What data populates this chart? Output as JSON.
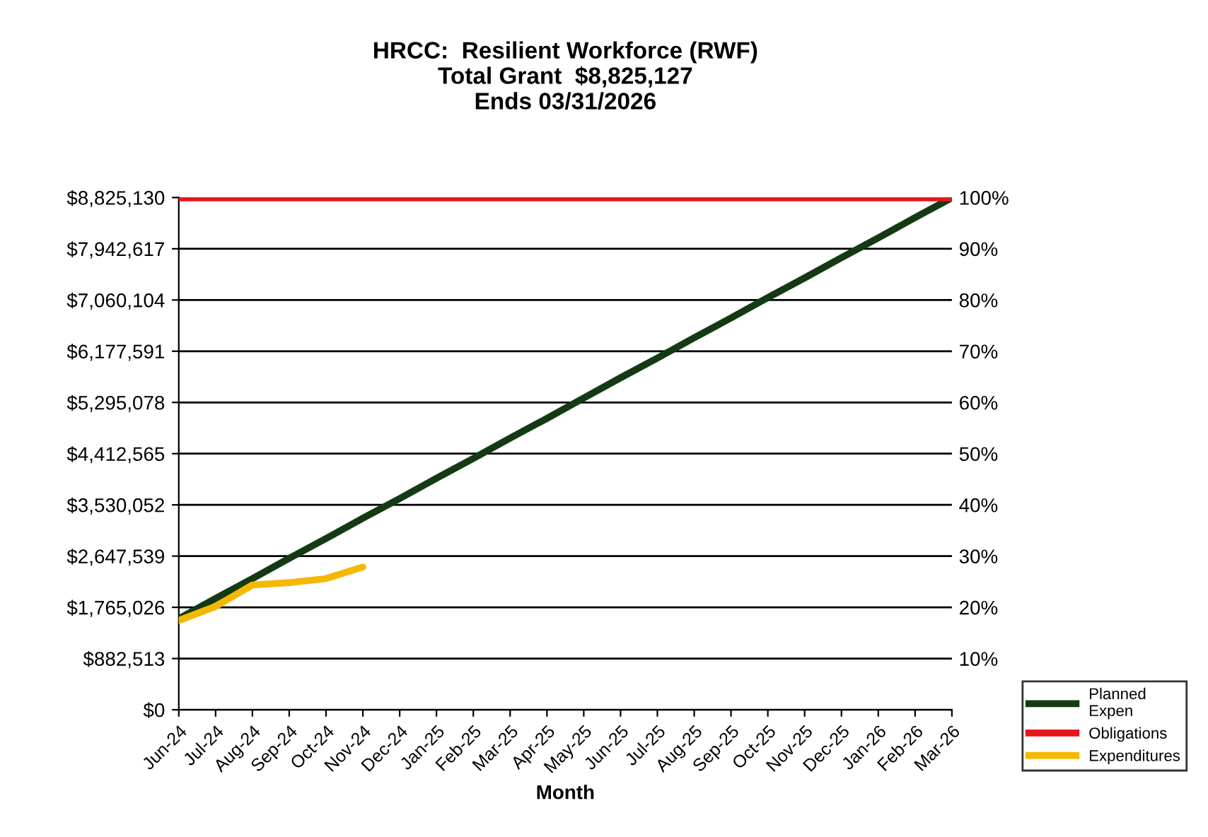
{
  "chart_data": {
    "type": "line",
    "title": "HRCC:  Resilient Workforce (RWF)\nTotal Grant  $8,825,127\nEnds 03/31/2026",
    "xlabel": "Month",
    "categories": [
      "Jun-24",
      "Jul-24",
      "Aug-24",
      "Sep-24",
      "Oct-24",
      "Nov-24",
      "Dec-24",
      "Jan-25",
      "Feb-25",
      "Mar-25",
      "Apr-25",
      "May-25",
      "Jun-25",
      "Jul-25",
      "Aug-25",
      "Sep-25",
      "Oct-25",
      "Nov-25",
      "Dec-25",
      "Jan-26",
      "Feb-26",
      "Mar-26"
    ],
    "series": [
      {
        "name": "Planned\nExpen",
        "color": "#143a14",
        "values": [
          1570000,
          1920000,
          2260000,
          2610000,
          2950000,
          3300000,
          3640000,
          3990000,
          4330000,
          4680000,
          5020000,
          5370000,
          5720000,
          6060000,
          6410000,
          6750000,
          7100000,
          7440000,
          7790000,
          8130000,
          8480000,
          8820000
        ]
      },
      {
        "name": "Obligations",
        "color": "#e8141c",
        "values": [
          8820000,
          8820000,
          8820000,
          8820000,
          8820000,
          8820000,
          8820000,
          8820000,
          8820000,
          8820000,
          8820000,
          8820000,
          8820000,
          8820000,
          8820000,
          8820000,
          8820000,
          8820000,
          8820000,
          8820000,
          8820000,
          8820000
        ]
      },
      {
        "name": "Expenditures",
        "color": "#f5b800",
        "values": [
          1540000,
          1780000,
          2150000,
          2190000,
          2260000,
          2460000,
          null,
          null,
          null,
          null,
          null,
          null,
          null,
          null,
          null,
          null,
          null,
          null,
          null,
          null,
          null,
          null
        ]
      }
    ],
    "ylim": [
      0,
      8825130
    ],
    "yticks": [
      {
        "value": 0,
        "label": "$0"
      },
      {
        "value": 882513,
        "label": "$882,513"
      },
      {
        "value": 1765026,
        "label": "$1,765,026"
      },
      {
        "value": 2647539,
        "label": "$2,647,539"
      },
      {
        "value": 3530052,
        "label": "$3,530,052"
      },
      {
        "value": 4412565,
        "label": "$4,412,565"
      },
      {
        "value": 5295078,
        "label": "$5,295,078"
      },
      {
        "value": 6177591,
        "label": "$6,177,591"
      },
      {
        "value": 7060104,
        "label": "$7,060,104"
      },
      {
        "value": 7942617,
        "label": "$7,942,617"
      },
      {
        "value": 8825130,
        "label": "$8,825,130"
      }
    ],
    "y2lim": [
      0,
      100
    ],
    "y2ticks": [
      {
        "value": 10,
        "label": "10%"
      },
      {
        "value": 20,
        "label": "20%"
      },
      {
        "value": 30,
        "label": "30%"
      },
      {
        "value": 40,
        "label": "40%"
      },
      {
        "value": 50,
        "label": "50%"
      },
      {
        "value": 60,
        "label": "60%"
      },
      {
        "value": 70,
        "label": "70%"
      },
      {
        "value": 80,
        "label": "80%"
      },
      {
        "value": 90,
        "label": "90%"
      },
      {
        "value": 100,
        "label": "100%"
      }
    ],
    "grid": "y",
    "legend": "bottom right",
    "marker": "none",
    "line_style": "solid"
  }
}
